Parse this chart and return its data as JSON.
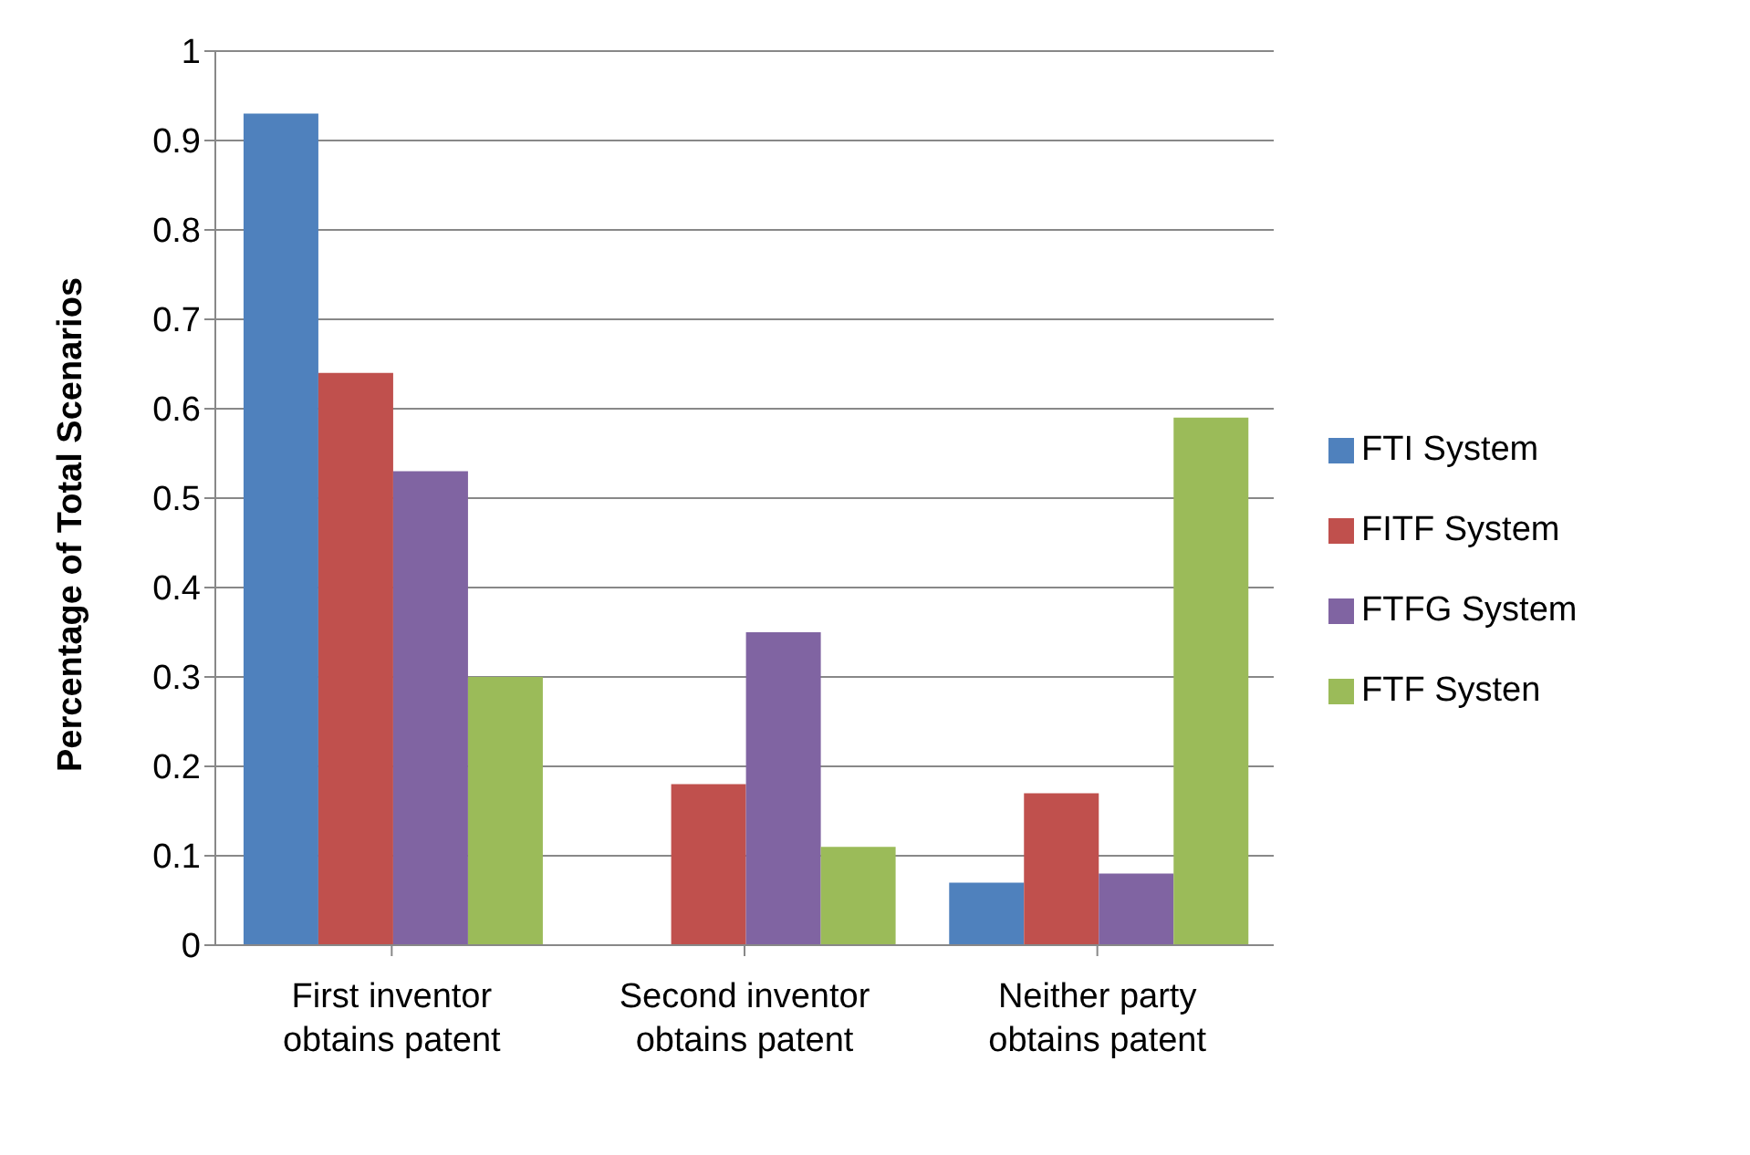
{
  "chart_data": {
    "type": "bar",
    "ylabel": "Percentage of Total Scenarios",
    "categories": [
      "First inventor obtains patent",
      "Second inventor obtains patent",
      "Neither party obtains patent"
    ],
    "series": [
      {
        "name": "FTI System",
        "color": "#4f81bd",
        "values": [
          0.93,
          0,
          0.07
        ]
      },
      {
        "name": "FITF System",
        "color": "#c0504d",
        "values": [
          0.64,
          0.18,
          0.17
        ]
      },
      {
        "name": "FTFG System",
        "color": "#8064a2",
        "values": [
          0.53,
          0.35,
          0.08
        ]
      },
      {
        "name": "FTF Systen",
        "color": "#9bbb59",
        "values": [
          0.3,
          0.11,
          0.59
        ]
      }
    ],
    "ylim": [
      0,
      1
    ],
    "yticks": [
      0,
      0.1,
      0.2,
      0.3,
      0.4,
      0.5,
      0.6,
      0.7,
      0.8,
      0.9,
      1
    ],
    "grid": "y",
    "legend": "right"
  }
}
